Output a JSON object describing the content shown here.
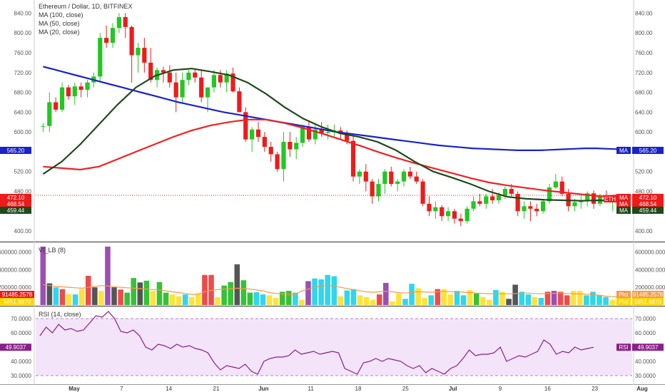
{
  "header": {
    "title": "Ethereum / Dollar, 1D, BITFINEX",
    "ma100_label": "MA (100, close)",
    "ma50_label": "MA (50, close)",
    "ma20_label": "MA (20, close)"
  },
  "colors": {
    "bull": "#22c722",
    "bear": "#ee1b1b",
    "ma100": "#1a22c8",
    "ma50": "#ee2222",
    "ma20": "#1e4a1a",
    "rsi": "#8a1f8a",
    "rsi_band": "#f3e4fa",
    "vol_ma": "#f59a4a",
    "axis_text": "#555555"
  },
  "chart_data": [
    {
      "type": "candlestick",
      "title": "Ethereum / Dollar, 1D, BITFINEX",
      "ylim": [
        380,
        855
      ],
      "y_ticks": [
        "840.00",
        "800.00",
        "760.00",
        "720.00",
        "680.00",
        "640.00",
        "600.00",
        "560.00",
        "520.00",
        "480.00",
        "440.00",
        "400.00"
      ],
      "x_ticks": [
        "May",
        "7",
        "14",
        "21",
        "Jun",
        "11",
        "18",
        "25",
        "Jul",
        "9",
        "16",
        "23",
        "Aug"
      ],
      "price_tags_left": [
        {
          "label": "565.20",
          "bg": "#1a22c8",
          "y": 565.2
        },
        {
          "label": "472.10",
          "bg": "#ee1b1b",
          "y": 472.1
        },
        {
          "label": "468.54",
          "bg": "#ee1b1b",
          "y": 468.54
        },
        {
          "label": "459.44",
          "bg": "#1e4a1a",
          "y": 459.44
        }
      ],
      "price_tags_right": [
        {
          "name": "MA",
          "label": "565.20",
          "bg": "#1a22c8",
          "y": 565.2
        },
        {
          "name": "MA",
          "label": "472.10",
          "bg": "#ee1b1b",
          "y": 472.1
        },
        {
          "name": "MA",
          "label": "468.54",
          "bg": "#ee1b1b",
          "y": 468.54
        },
        {
          "name": "MA",
          "label": "459.44",
          "bg": "#1e4a1a",
          "y": 459.44
        }
      ],
      "symbol_tag": "ETH",
      "last_price": 472.1,
      "ohlc": [
        [
          612,
          618,
          600,
          612
        ],
        [
          612,
          680,
          600,
          660
        ],
        [
          660,
          670,
          640,
          645
        ],
        [
          645,
          700,
          640,
          690
        ],
        [
          690,
          695,
          665,
          672
        ],
        [
          672,
          700,
          655,
          692
        ],
        [
          692,
          700,
          670,
          685
        ],
        [
          685,
          705,
          670,
          700
        ],
        [
          700,
          720,
          690,
          712
        ],
        [
          712,
          800,
          700,
          790
        ],
        [
          790,
          815,
          770,
          780
        ],
        [
          780,
          820,
          770,
          810
        ],
        [
          810,
          840,
          800,
          832
        ],
        [
          832,
          840,
          790,
          812
        ],
        [
          812,
          815,
          700,
          755
        ],
        [
          755,
          780,
          720,
          770
        ],
        [
          770,
          790,
          720,
          740
        ],
        [
          740,
          770,
          700,
          705
        ],
        [
          705,
          730,
          690,
          725
        ],
        [
          725,
          732,
          700,
          720
        ],
        [
          720,
          735,
          690,
          700
        ],
        [
          700,
          720,
          640,
          670
        ],
        [
          670,
          720,
          660,
          705
        ],
        [
          705,
          728,
          695,
          720
        ],
        [
          720,
          728,
          700,
          710
        ],
        [
          710,
          725,
          660,
          670
        ],
        [
          670,
          690,
          640,
          690
        ],
        [
          690,
          725,
          680,
          715
        ],
        [
          715,
          725,
          690,
          700
        ],
        [
          700,
          725,
          680,
          718
        ],
        [
          718,
          730,
          680,
          682
        ],
        [
          682,
          690,
          640,
          640
        ],
        [
          640,
          650,
          580,
          585
        ],
        [
          585,
          610,
          560,
          605
        ],
        [
          605,
          620,
          580,
          590
        ],
        [
          590,
          600,
          560,
          570
        ],
        [
          570,
          580,
          540,
          555
        ],
        [
          555,
          560,
          520,
          525
        ],
        [
          525,
          600,
          500,
          580
        ],
        [
          580,
          600,
          550,
          565
        ],
        [
          565,
          590,
          545,
          578
        ],
        [
          578,
          615,
          570,
          610
        ],
        [
          610,
          620,
          580,
          585
        ],
        [
          585,
          615,
          575,
          605
        ],
        [
          605,
          620,
          590,
          598
        ],
        [
          598,
          615,
          585,
          600
        ],
        [
          600,
          615,
          590,
          603
        ],
        [
          603,
          610,
          585,
          598
        ],
        [
          598,
          603,
          575,
          582
        ],
        [
          582,
          595,
          500,
          510
        ],
        [
          510,
          525,
          495,
          520
        ],
        [
          520,
          535,
          480,
          500
        ],
        [
          500,
          505,
          455,
          470
        ],
        [
          470,
          505,
          460,
          495
        ],
        [
          495,
          525,
          475,
          520
        ],
        [
          520,
          530,
          490,
          495
        ],
        [
          495,
          505,
          480,
          500
        ],
        [
          500,
          525,
          490,
          520
        ],
        [
          520,
          530,
          505,
          510
        ],
        [
          510,
          520,
          495,
          500
        ],
        [
          500,
          505,
          450,
          455
        ],
        [
          455,
          470,
          430,
          440
        ],
        [
          440,
          460,
          425,
          448
        ],
        [
          448,
          452,
          420,
          430
        ],
        [
          430,
          448,
          420,
          440
        ],
        [
          440,
          445,
          415,
          425
        ],
        [
          425,
          435,
          410,
          420
        ],
        [
          420,
          450,
          415,
          445
        ],
        [
          445,
          470,
          440,
          460
        ],
        [
          460,
          475,
          450,
          455
        ],
        [
          455,
          475,
          445,
          470
        ],
        [
          470,
          485,
          455,
          462
        ],
        [
          462,
          478,
          455,
          472
        ],
        [
          472,
          490,
          465,
          485
        ],
        [
          485,
          495,
          470,
          475
        ],
        [
          475,
          480,
          430,
          440
        ],
        [
          440,
          460,
          425,
          450
        ],
        [
          450,
          460,
          420,
          445
        ],
        [
          445,
          455,
          430,
          440
        ],
        [
          440,
          465,
          435,
          460
        ],
        [
          460,
          495,
          455,
          488
        ],
        [
          488,
          515,
          485,
          500
        ],
        [
          500,
          510,
          470,
          475
        ],
        [
          475,
          485,
          440,
          450
        ],
        [
          450,
          465,
          440,
          458
        ],
        [
          458,
          472,
          445,
          460
        ],
        [
          460,
          480,
          450,
          476
        ],
        [
          476,
          482,
          445,
          455
        ],
        [
          455,
          475,
          450,
          470
        ],
        [
          470,
          482,
          460,
          465
        ],
        [
          465,
          470,
          440,
          468
        ],
        [
          468,
          475,
          455,
          472
        ]
      ],
      "ma100": [
        732,
        726,
        720,
        714,
        708,
        702,
        696,
        690,
        684,
        678,
        672,
        666,
        660,
        655,
        650,
        645,
        640,
        636,
        632,
        628,
        624,
        620,
        616,
        612,
        608,
        604,
        600,
        597,
        594,
        591,
        588,
        585,
        582,
        579,
        576,
        573,
        571,
        569,
        567,
        566,
        565,
        564,
        563,
        563,
        563,
        564,
        565,
        566,
        567,
        567,
        566,
        565.2
      ],
      "ma50": [
        530,
        527,
        524,
        530,
        545,
        560,
        575,
        590,
        603,
        613,
        620,
        625,
        625,
        618,
        608,
        597,
        585,
        573,
        560,
        548,
        537,
        527,
        517,
        507,
        498,
        492,
        487,
        482,
        478,
        474,
        470,
        472.1
      ],
      "ma20": [
        515,
        540,
        575,
        615,
        655,
        690,
        713,
        725,
        728,
        722,
        715,
        700,
        677,
        650,
        627,
        610,
        597,
        590,
        580,
        563,
        540,
        520,
        508,
        495,
        480,
        469,
        465,
        463,
        462,
        461,
        462,
        459.44
      ]
    },
    {
      "type": "bar",
      "title": "VI_LB (8)",
      "ylim": [
        0,
        700000
      ],
      "y_ticks": [
        "600000.0000",
        "400000.0000",
        "200000.0000"
      ],
      "tags_left": [
        {
          "label": "91485.2578",
          "bg": "#ee1b1b"
        },
        {
          "label": "5851.6870",
          "bg": "#ffd400"
        }
      ],
      "tags_right": [
        {
          "name": "Plot",
          "label": "91485.2578",
          "bg": "#f59a4a"
        },
        {
          "name": "Plot",
          "label": "5851.6870",
          "bg": "#ffd400"
        }
      ],
      "palette": [
        "#9c4fb3",
        "#555555",
        "#ee4b4b",
        "#37c137",
        "#2fd6ee",
        "#ffe23a"
      ],
      "values": [
        [
          660000,
          0
        ],
        [
          245000,
          1
        ],
        [
          200000,
          4
        ],
        [
          180000,
          2
        ],
        [
          125000,
          5
        ],
        [
          120000,
          4
        ],
        [
          180000,
          5
        ],
        [
          330000,
          2
        ],
        [
          200000,
          1
        ],
        [
          160000,
          5
        ],
        [
          660000,
          0
        ],
        [
          200000,
          1
        ],
        [
          175000,
          2
        ],
        [
          140000,
          3
        ],
        [
          305000,
          3
        ],
        [
          255000,
          1
        ],
        [
          275000,
          3
        ],
        [
          160000,
          5
        ],
        [
          260000,
          3
        ],
        [
          140000,
          3
        ],
        [
          120000,
          5
        ],
        [
          100000,
          5
        ],
        [
          120000,
          4
        ],
        [
          90000,
          5
        ],
        [
          130000,
          5
        ],
        [
          340000,
          2
        ],
        [
          340000,
          2
        ],
        [
          90000,
          5
        ],
        [
          220000,
          3
        ],
        [
          260000,
          3
        ],
        [
          460000,
          1
        ],
        [
          280000,
          3
        ],
        [
          140000,
          3
        ],
        [
          145000,
          4
        ],
        [
          120000,
          4
        ],
        [
          110000,
          5
        ],
        [
          80000,
          5
        ],
        [
          150000,
          3
        ],
        [
          160000,
          3
        ],
        [
          140000,
          4
        ],
        [
          60000,
          5
        ],
        [
          270000,
          0
        ],
        [
          300000,
          4
        ],
        [
          290000,
          4
        ],
        [
          340000,
          4
        ],
        [
          325000,
          4
        ],
        [
          100000,
          5
        ],
        [
          165000,
          4
        ],
        [
          180000,
          4
        ],
        [
          110000,
          5
        ],
        [
          90000,
          5
        ],
        [
          60000,
          5
        ],
        [
          120000,
          2
        ],
        [
          250000,
          0
        ],
        [
          40000,
          5
        ],
        [
          130000,
          5
        ],
        [
          70000,
          4
        ],
        [
          240000,
          4
        ],
        [
          190000,
          5
        ],
        [
          80000,
          5
        ],
        [
          110000,
          4
        ],
        [
          180000,
          2
        ],
        [
          180000,
          5
        ],
        [
          120000,
          5
        ],
        [
          160000,
          4
        ],
        [
          110000,
          4
        ],
        [
          170000,
          5
        ],
        [
          130000,
          3
        ],
        [
          90000,
          5
        ],
        [
          60000,
          5
        ],
        [
          170000,
          4
        ],
        [
          150000,
          5
        ],
        [
          70000,
          1
        ],
        [
          230000,
          1
        ],
        [
          150000,
          4
        ],
        [
          120000,
          4
        ],
        [
          90000,
          5
        ],
        [
          80000,
          4
        ],
        [
          150000,
          2
        ],
        [
          160000,
          0
        ],
        [
          150000,
          2
        ],
        [
          110000,
          2
        ],
        [
          160000,
          5
        ],
        [
          160000,
          5
        ],
        [
          110000,
          4
        ],
        [
          150000,
          4
        ],
        [
          110000,
          4
        ],
        [
          90000,
          4
        ],
        [
          60000,
          5
        ],
        [
          40000,
          5
        ]
      ],
      "ma_line": [
        230000,
        220000,
        210000,
        205000,
        200000,
        195000,
        190000,
        200000,
        210000,
        220000,
        215000,
        205000,
        200000,
        195000,
        190000,
        185000,
        180000,
        175000,
        170000,
        160000,
        150000,
        140000,
        130000,
        120000,
        125000,
        150000,
        165000,
        175000,
        180000,
        185000,
        190000,
        185000,
        180000,
        170000,
        160000,
        140000,
        130000,
        125000,
        120000,
        118000,
        160000,
        180000,
        200000,
        215000,
        220000,
        215000,
        200000,
        185000,
        175000,
        160000,
        150000,
        145000,
        150000,
        155000,
        150000,
        140000,
        135000,
        145000,
        150000,
        148000,
        145000,
        150000,
        155000,
        150000,
        148000,
        145000,
        140000,
        135000,
        130000,
        128000,
        130000,
        128000,
        126000,
        130000,
        135000,
        135000,
        130000,
        128000,
        130000,
        133000,
        135000,
        130000,
        128000,
        125000,
        122000,
        118000,
        110000,
        100000,
        95000,
        91485
      ]
    },
    {
      "type": "line",
      "title": "RSI (14, close)",
      "ylim": [
        25,
        78
      ],
      "y_ticks": [
        "70.0000",
        "60.0000",
        "50.0000",
        "40.0000",
        "30.0000"
      ],
      "band": [
        30,
        70
      ],
      "tag_left": {
        "label": "49.9037",
        "bg": "#8a1f8a"
      },
      "tag_right": {
        "name": "RSI",
        "label": "49.9037",
        "bg": "#8a1f8a"
      },
      "values": [
        58,
        64,
        60,
        66,
        62,
        63,
        61,
        62,
        67,
        72,
        71,
        75,
        70,
        61,
        60,
        62,
        58,
        50,
        48,
        52,
        51,
        49,
        52,
        50,
        51,
        49,
        48,
        46,
        39,
        34,
        37,
        36,
        35,
        38,
        33,
        31,
        40,
        42,
        43,
        43,
        44,
        48,
        45,
        46,
        47,
        45,
        46,
        47,
        46,
        35,
        33,
        31,
        39,
        40,
        42,
        40,
        42,
        41,
        40,
        37,
        35,
        37,
        32,
        35,
        33,
        31,
        35,
        37,
        42,
        48,
        44,
        45,
        45,
        46,
        50,
        40,
        42,
        44,
        43,
        45,
        47,
        55,
        52,
        45,
        47,
        46,
        50,
        48,
        49,
        49.9037
      ]
    }
  ]
}
